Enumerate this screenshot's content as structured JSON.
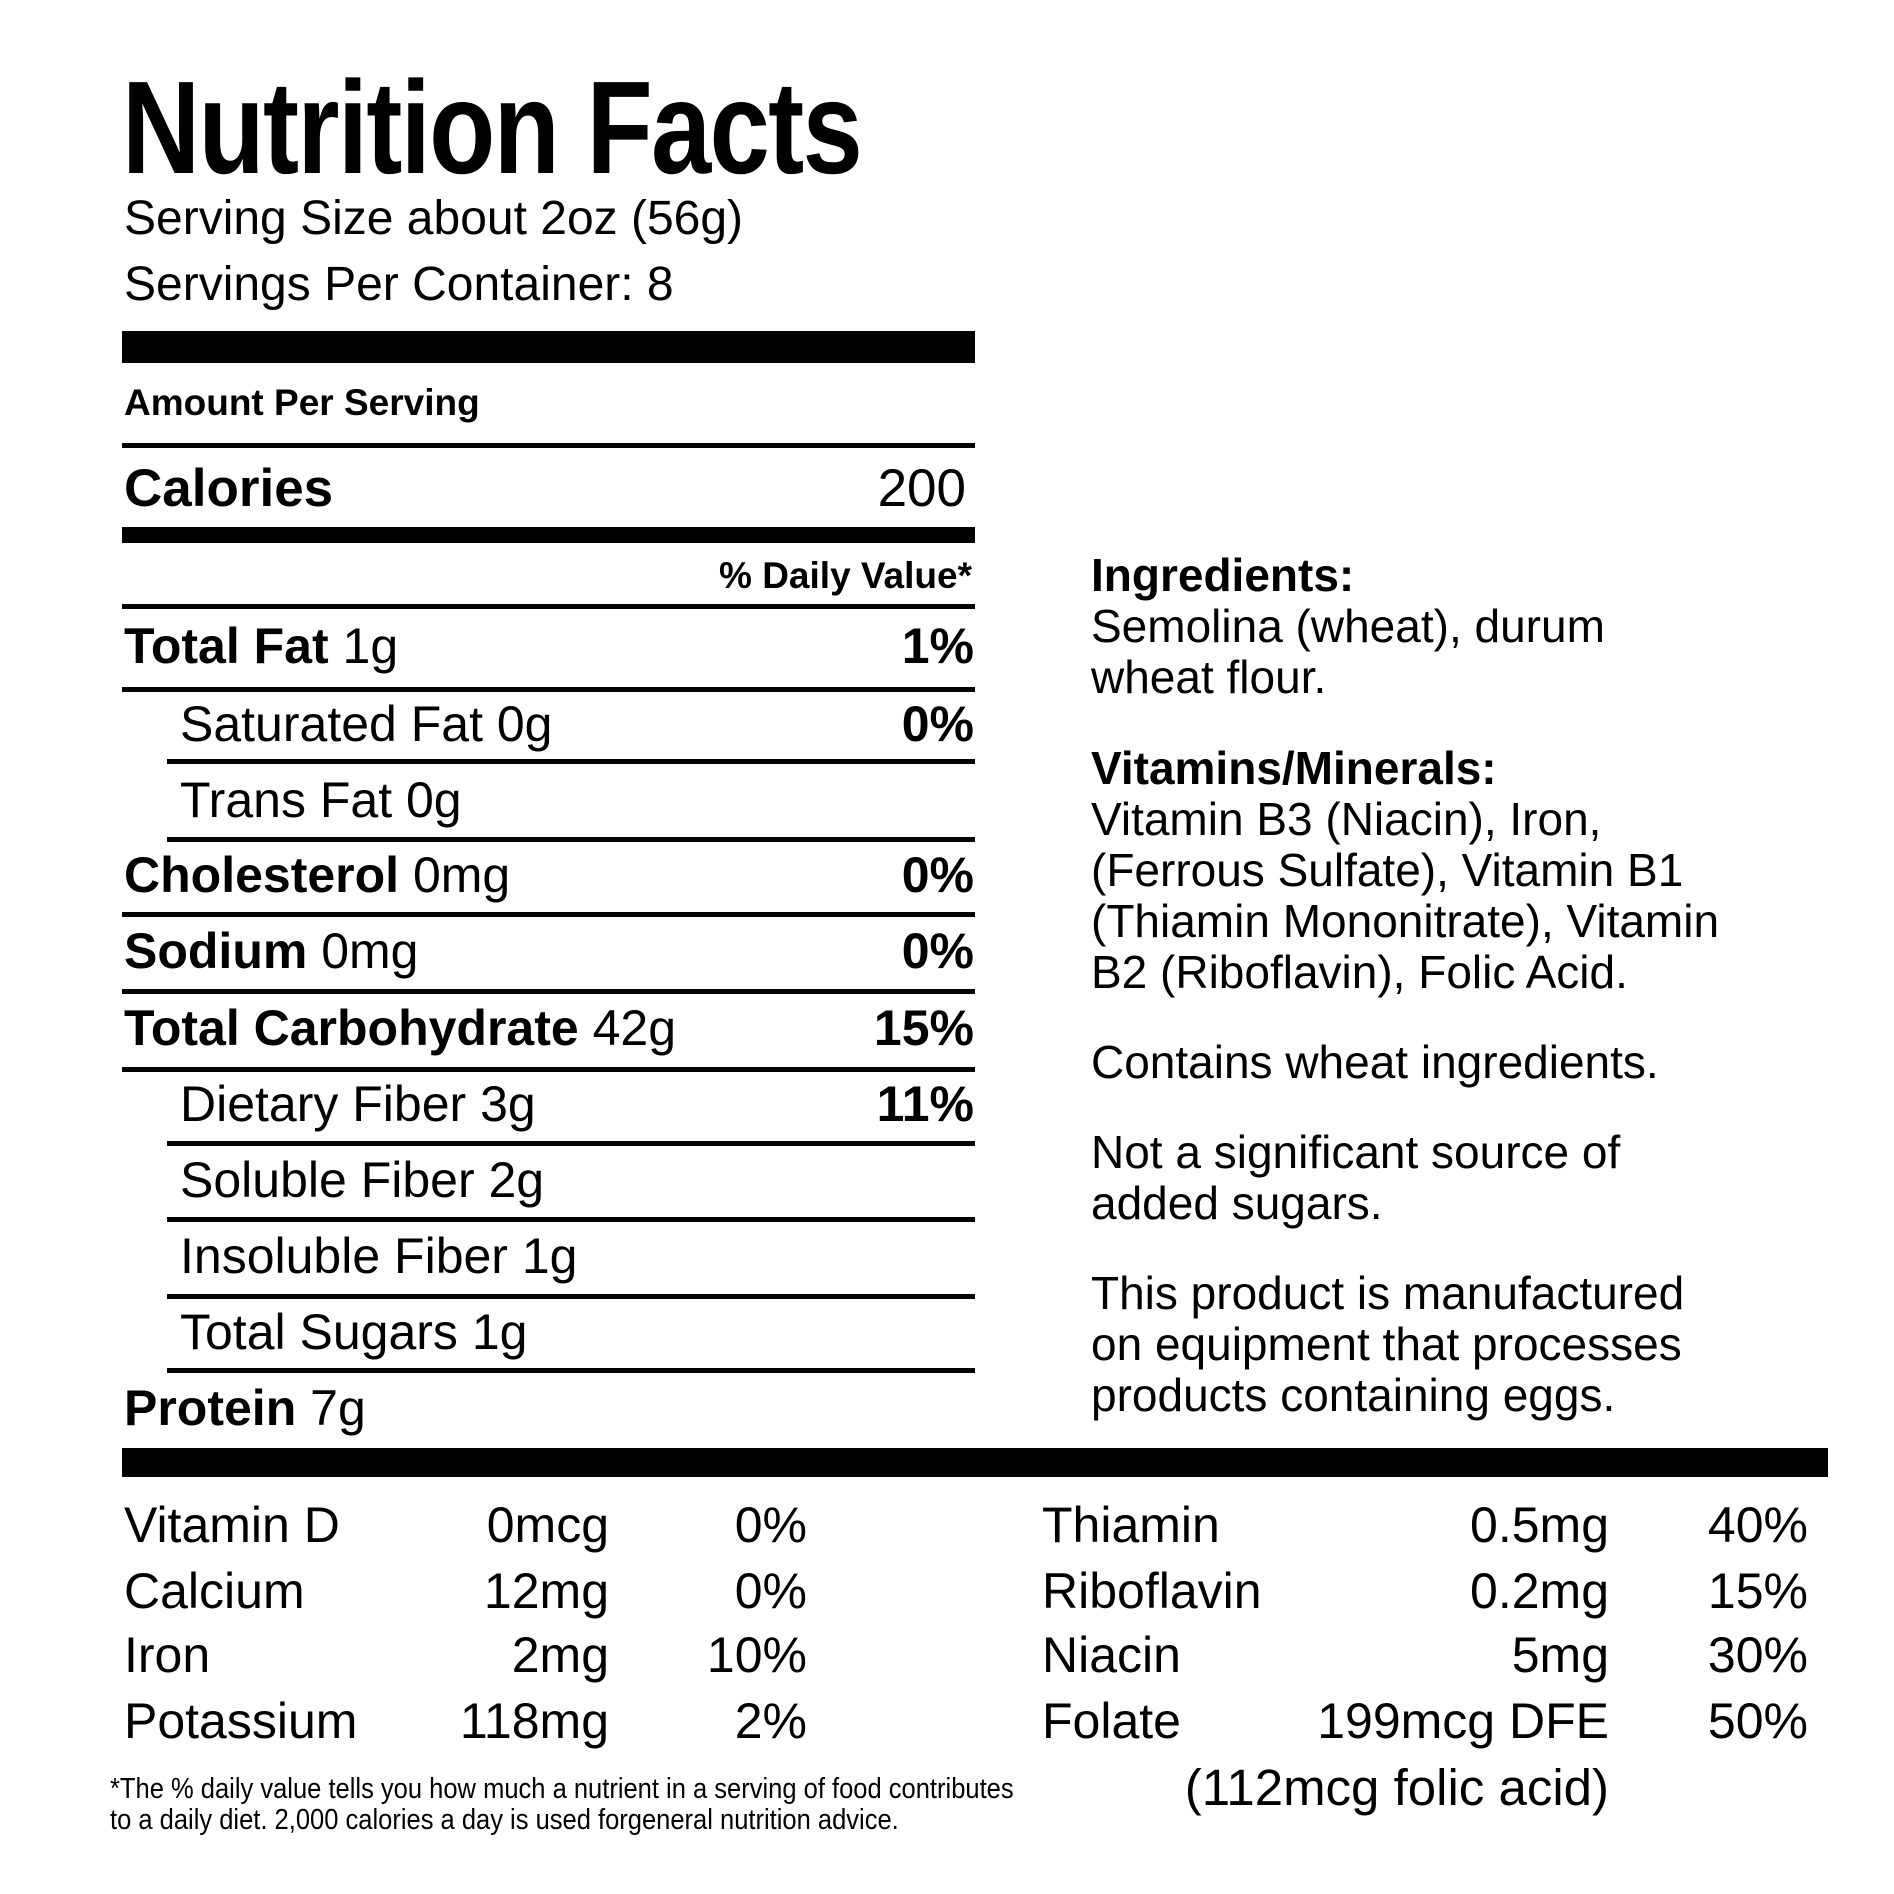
{
  "title": "Nutrition Facts",
  "serving_size": "Serving Size about 2oz (56g)",
  "servings_per_container": "Servings Per Container: 8",
  "amount_per_serving": "Amount Per Serving",
  "calories": {
    "label": "Calories",
    "value": "200"
  },
  "daily_value_header": "% Daily Value*",
  "nutrients": [
    {
      "label": "Total Fat",
      "amount": " 1g",
      "pct": "1%"
    },
    {
      "label": "Saturated Fat 0g",
      "pct": "0%"
    },
    {
      "label": "Trans Fat 0g"
    },
    {
      "label": "Cholesterol",
      "amount": " 0mg",
      "pct": "0%"
    },
    {
      "label": "Sodium",
      "amount": " 0mg",
      "pct": "0%"
    },
    {
      "label": "Total Carbohydrate",
      "amount": " 42g",
      "pct": "15%"
    },
    {
      "label": "Dietary Fiber 3g",
      "pct": "11%"
    },
    {
      "label": "Soluble Fiber 2g"
    },
    {
      "label": "Insoluble Fiber 1g"
    },
    {
      "label": "Total Sugars 1g"
    },
    {
      "label": "Protein",
      "amount": " 7g"
    }
  ],
  "vitamins_left": [
    {
      "name": "Vitamin D",
      "amount": "0mcg",
      "pct": "0%"
    },
    {
      "name": "Calcium",
      "amount": "12mg",
      "pct": "0%"
    },
    {
      "name": "Iron",
      "amount": "2mg",
      "pct": "10%"
    },
    {
      "name": "Potassium",
      "amount": "118mg",
      "pct": "2%"
    }
  ],
  "vitamins_right": [
    {
      "name": "Thiamin",
      "amount": "0.5mg",
      "pct": "40%"
    },
    {
      "name": "Riboflavin",
      "amount": "0.2mg",
      "pct": "15%"
    },
    {
      "name": "Niacin",
      "amount": "5mg",
      "pct": "30%"
    },
    {
      "name": "Folate",
      "amount": "199mcg DFE",
      "pct": "50%"
    }
  ],
  "folic_acid_note": "(112mcg folic acid)",
  "ingredients": {
    "heading": "Ingredients:",
    "lines": [
      "Semolina (wheat), durum",
      "wheat flour."
    ]
  },
  "vitamins_minerals": {
    "heading": "Vitamins/Minerals:",
    "lines": [
      "Vitamin B3 (Niacin), Iron,",
      "(Ferrous Sulfate), Vitamin B1",
      "(Thiamin Mononitrate), Vitamin",
      "B2 (Riboflavin), Folic Acid."
    ]
  },
  "allergen": "Contains wheat ingredients.",
  "added_sugars": [
    "Not a significant source of",
    "added sugars."
  ],
  "equipment": [
    "This product is manufactured",
    "on equipment that processes",
    "products containing eggs."
  ],
  "footnote": [
    "*The % daily value tells you how much a nutrient in a serving of food contributes",
    " to a daily diet. 2,000 calories a day is used forgeneral nutrition advice."
  ]
}
